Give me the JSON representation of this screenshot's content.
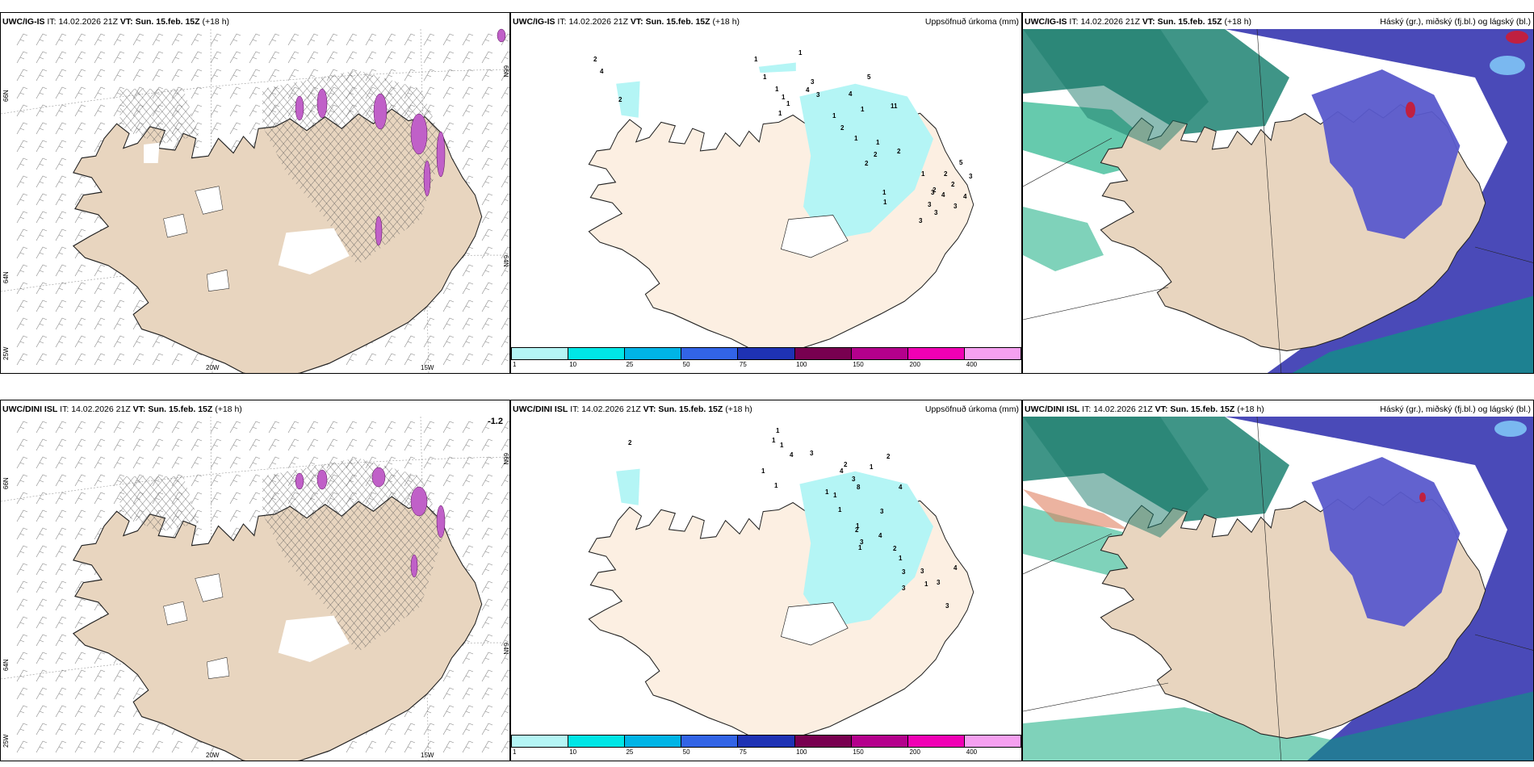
{
  "panels": [
    {
      "model": "UWC/IG-IS",
      "it_label": "IT:",
      "it_value": "14.02.2026 21Z",
      "vt_label": "VT:",
      "vt_value": "Sun. 15.feb. 15Z",
      "lead": "(+18 h)",
      "right_title": "",
      "lat_left_1": "66N",
      "lat_left_2": "64N",
      "lat_left_3": "25W",
      "lat_right_1": "66N",
      "lat_right_2": "64N",
      "lon_1": "20W",
      "lon_2": "15W",
      "corner_value": ""
    },
    {
      "model": "UWC/IG-IS",
      "it_label": "IT:",
      "it_value": "14.02.2026 21Z",
      "vt_label": "VT:",
      "vt_value": "Sun. 15.feb. 15Z",
      "lead": "(+18 h)",
      "right_title": "Uppsöfnuð úrkoma (mm)"
    },
    {
      "model": "UWC/IG-IS",
      "it_label": "IT:",
      "it_value": "14.02.2026 21Z",
      "vt_label": "VT:",
      "vt_value": "Sun. 15.feb. 15Z",
      "lead": "(+18 h)",
      "right_title": "Háský (gr.), miðský (fj.bl.) og lágský (bl.)"
    },
    {
      "model": "UWC/DINI ISL",
      "it_label": "IT:",
      "it_value": "14.02.2026 21Z",
      "vt_label": "VT:",
      "vt_value": "Sun. 15.feb. 15Z",
      "lead": "(+18 h)",
      "right_title": "",
      "lat_left_1": "66N",
      "lat_left_2": "64N",
      "lat_left_3": "25W",
      "lat_right_1": "66N",
      "lat_right_2": "64N",
      "lon_1": "20W",
      "lon_2": "15W",
      "corner_value": "-1.2"
    },
    {
      "model": "UWC/DINI ISL",
      "it_label": "IT:",
      "it_value": "14.02.2026 21Z",
      "vt_label": "VT:",
      "vt_value": "Sun. 15.feb. 15Z",
      "lead": "(+18 h)",
      "right_title": "Uppsöfnuð úrkoma (mm)"
    },
    {
      "model": "UWC/DINI ISL",
      "it_label": "IT:",
      "it_value": "14.02.2026 21Z",
      "vt_label": "VT:",
      "vt_value": "Sun. 15.feb. 15Z",
      "lead": "(+18 h)",
      "right_title": "Háský (gr.), miðský (fj.bl.) og lágský (bl.)"
    }
  ],
  "precip_legend": {
    "ticks": [
      "1",
      "10",
      "25",
      "50",
      "75",
      "100",
      "150",
      "200",
      "400"
    ],
    "colors": [
      "#b4f5f5",
      "#00e6e6",
      "#00b4e6",
      "#3264e6",
      "#1e32b4",
      "#780050",
      "#b4008c",
      "#f000b4",
      "#f5a0f0"
    ]
  },
  "precip_labels_top": [
    "1",
    "1",
    "2",
    "4",
    "2",
    "1",
    "1",
    "1",
    "1",
    "1",
    "3",
    "4",
    "3",
    "5",
    "4",
    "11",
    "1",
    "1",
    "2",
    "1",
    "1",
    "2",
    "2",
    "2",
    "1",
    "2",
    "3",
    "2",
    "5",
    "3",
    "2",
    "4",
    "1",
    "1",
    "3",
    "3",
    "3",
    "4",
    "3"
  ],
  "precip_labels_bottom": [
    "1",
    "2",
    "1",
    "1",
    "4",
    "3",
    "2",
    "4",
    "3",
    "8",
    "1",
    "1",
    "1",
    "2",
    "1",
    "4",
    "1",
    "1",
    "1",
    "2",
    "3",
    "4",
    "3",
    "2",
    "1",
    "3",
    "3",
    "3",
    "4",
    "3",
    "3",
    "1",
    "1"
  ],
  "colors": {
    "land": "#e8d5bf",
    "land_precip": "#fcefe2",
    "hatch": "#555555",
    "purple_precip": "#c060c8",
    "cloud_high": "#00a676",
    "cloud_mid": "#5a5acc",
    "cloud_low": "#7ab8f0",
    "cloud_sea": "#4a4ab8"
  }
}
